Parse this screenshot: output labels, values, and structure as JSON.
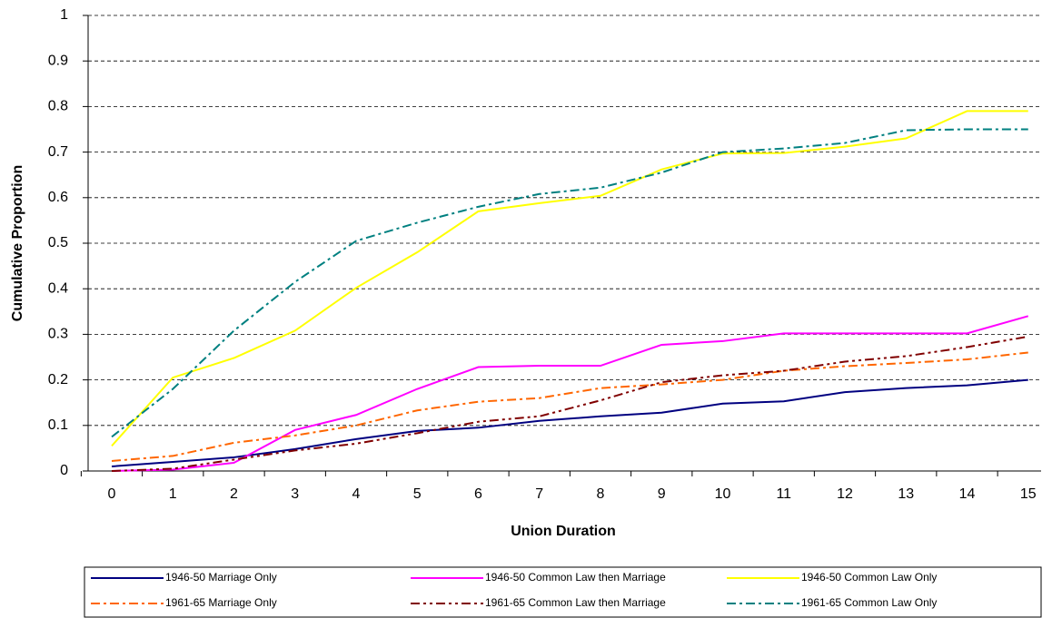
{
  "chart_data": {
    "type": "line",
    "xlabel": "Union Duration",
    "ylabel": "Cumulative Proportion",
    "categories": [
      "0",
      "1",
      "2",
      "3",
      "4",
      "5",
      "6",
      "7",
      "8",
      "9",
      "10",
      "11",
      "12",
      "13",
      "14",
      "15"
    ],
    "ylim": [
      0,
      1
    ],
    "yticks": [
      0,
      0.1,
      0.2,
      0.3,
      0.4,
      0.5,
      0.6,
      0.7,
      0.8,
      0.9,
      1
    ],
    "grid": true,
    "legend": "bottom",
    "series": [
      {
        "name": "1946-50 Marriage Only",
        "color": "#000080",
        "dash": "solid",
        "values": [
          0.01,
          0.02,
          0.03,
          0.048,
          0.07,
          0.088,
          0.095,
          0.11,
          0.12,
          0.128,
          0.148,
          0.153,
          0.173,
          0.182,
          0.188,
          0.2
        ]
      },
      {
        "name": "1946-50 Common Law then Marriage",
        "color": "#ff00ff",
        "dash": "solid",
        "values": [
          0,
          0.003,
          0.018,
          0.09,
          0.123,
          0.18,
          0.228,
          0.231,
          0.231,
          0.277,
          0.285,
          0.302,
          0.302,
          0.302,
          0.302,
          0.34
        ]
      },
      {
        "name": "1946-50 Common Law Only",
        "color": "#ffff00",
        "dash": "solid",
        "values": [
          0.055,
          0.205,
          0.248,
          0.308,
          0.402,
          0.48,
          0.57,
          0.588,
          0.604,
          0.662,
          0.697,
          0.698,
          0.712,
          0.73,
          0.79,
          0.79
        ]
      },
      {
        "name": "1961-65 Marriage Only",
        "color": "#ff6600",
        "dash": "dashdot",
        "values": [
          0.022,
          0.033,
          0.062,
          0.078,
          0.1,
          0.133,
          0.152,
          0.16,
          0.182,
          0.19,
          0.2,
          0.22,
          0.23,
          0.237,
          0.245,
          0.26
        ]
      },
      {
        "name": "1961-65 Common Law then Marriage",
        "color": "#800000",
        "dash": "dashdotdot",
        "values": [
          0,
          0.005,
          0.025,
          0.045,
          0.06,
          0.083,
          0.108,
          0.12,
          0.155,
          0.195,
          0.21,
          0.22,
          0.24,
          0.252,
          0.272,
          0.295
        ]
      },
      {
        "name": "1961-65 Common Law Only",
        "color": "#008080",
        "dash": "dashdot",
        "values": [
          0.075,
          0.18,
          0.308,
          0.415,
          0.505,
          0.545,
          0.58,
          0.608,
          0.622,
          0.655,
          0.7,
          0.708,
          0.72,
          0.748,
          0.75,
          0.75
        ]
      }
    ]
  }
}
